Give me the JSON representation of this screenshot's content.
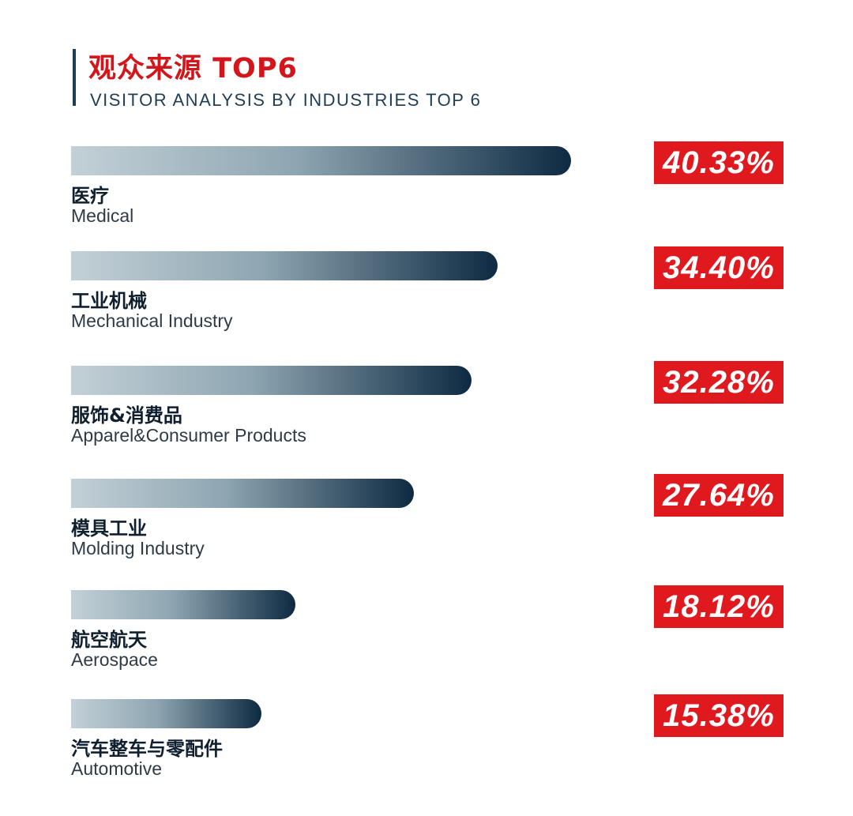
{
  "header": {
    "title_cn": "观众来源 TOP6",
    "title_en": "VISITOR ANALYSIS BY INDUSTRIES TOP 6"
  },
  "colors": {
    "accent": "#e0191f",
    "bar_start": "#c3d0d7",
    "bar_end": "#0e2a42",
    "title_red": "#d3161c"
  },
  "chart_data": {
    "type": "bar",
    "title": "观众来源 TOP6",
    "subtitle": "VISITOR ANALYSIS BY INDUSTRIES TOP 6",
    "categories": [
      "医疗",
      "工业机械",
      "服饰&消费品",
      "模具工业",
      "航空航天",
      "汽车整车与零配件"
    ],
    "categories_en": [
      "Medical",
      "Mechanical Industry",
      "Apparel&Consumer Products",
      "Molding Industry",
      "Aerospace",
      "Automotive"
    ],
    "values": [
      40.33,
      34.4,
      32.28,
      27.64,
      18.12,
      15.38
    ],
    "value_labels": [
      "40.33%",
      "34.40%",
      "32.28%",
      "27.64%",
      "18.12%",
      "15.38%"
    ],
    "orientation": "horizontal",
    "xlim": [
      0,
      40.33
    ],
    "grid": false,
    "xlabel": "",
    "ylabel": ""
  }
}
